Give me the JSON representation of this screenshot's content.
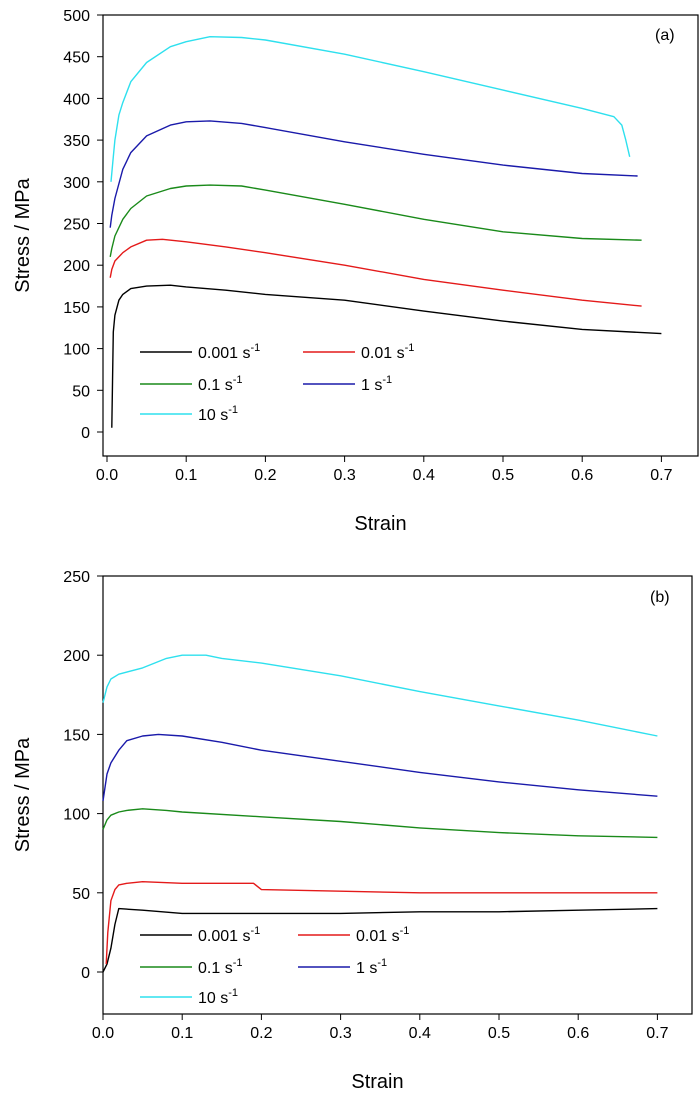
{
  "chart_data": [
    {
      "type": "line",
      "panel_label": "(a)",
      "xlabel": "Strain",
      "ylabel": "Stress / MPa",
      "xlim": [
        0,
        0.75
      ],
      "ylim": [
        -25,
        500
      ],
      "xticks": [
        "0.0",
        "0.1",
        "0.2",
        "0.3",
        "0.4",
        "0.5",
        "0.6",
        "0.7"
      ],
      "yticks": [
        "0",
        "50",
        "100",
        "150",
        "200",
        "250",
        "300",
        "350",
        "400",
        "450",
        "500"
      ],
      "legend_position": "lower-left",
      "series": [
        {
          "name": "0.001 s",
          "sup": "-1",
          "color": "#000000",
          "x": [
            0.006,
            0.008,
            0.01,
            0.015,
            0.02,
            0.03,
            0.05,
            0.08,
            0.1,
            0.15,
            0.2,
            0.3,
            0.4,
            0.5,
            0.6,
            0.7
          ],
          "y": [
            5,
            120,
            140,
            158,
            165,
            172,
            175,
            176,
            174,
            170,
            165,
            158,
            145,
            133,
            123,
            118
          ]
        },
        {
          "name": "0.01 s",
          "sup": "-1",
          "color": "#e41a1a",
          "x": [
            0.004,
            0.006,
            0.01,
            0.02,
            0.03,
            0.05,
            0.07,
            0.1,
            0.15,
            0.2,
            0.3,
            0.4,
            0.5,
            0.6,
            0.675
          ],
          "y": [
            185,
            195,
            205,
            215,
            222,
            230,
            231,
            228,
            222,
            215,
            200,
            183,
            170,
            158,
            151
          ]
        },
        {
          "name": "0.1 s",
          "sup": "-1",
          "color": "#1a8a1a",
          "x": [
            0.004,
            0.006,
            0.01,
            0.02,
            0.03,
            0.05,
            0.08,
            0.1,
            0.13,
            0.17,
            0.2,
            0.3,
            0.4,
            0.5,
            0.6,
            0.675
          ],
          "y": [
            210,
            220,
            235,
            255,
            268,
            283,
            292,
            295,
            296,
            295,
            290,
            273,
            255,
            240,
            232,
            230
          ]
        },
        {
          "name": "1 s",
          "sup": "-1",
          "color": "#1a1aaa",
          "x": [
            0.004,
            0.006,
            0.01,
            0.02,
            0.03,
            0.05,
            0.08,
            0.1,
            0.13,
            0.17,
            0.2,
            0.3,
            0.4,
            0.5,
            0.6,
            0.67
          ],
          "y": [
            245,
            260,
            280,
            315,
            335,
            355,
            368,
            372,
            373,
            370,
            365,
            348,
            333,
            320,
            310,
            307
          ]
        },
        {
          "name": "10 s",
          "sup": "-1",
          "color": "#2ee0ee",
          "x": [
            0.005,
            0.008,
            0.01,
            0.015,
            0.02,
            0.03,
            0.05,
            0.08,
            0.1,
            0.13,
            0.17,
            0.2,
            0.3,
            0.4,
            0.5,
            0.6,
            0.64,
            0.65,
            0.655,
            0.66
          ],
          "y": [
            300,
            330,
            350,
            380,
            395,
            420,
            443,
            462,
            468,
            474,
            473,
            470,
            453,
            432,
            410,
            388,
            378,
            368,
            350,
            330
          ]
        }
      ]
    },
    {
      "type": "line",
      "panel_label": "(b)",
      "xlabel": "Strain",
      "ylabel": "Stress / MPa",
      "xlim": [
        0,
        0.75
      ],
      "ylim": [
        -25,
        250
      ],
      "xticks": [
        "0.0",
        "0.1",
        "0.2",
        "0.3",
        "0.4",
        "0.5",
        "0.6",
        "0.7"
      ],
      "yticks": [
        "0",
        "50",
        "100",
        "150",
        "200",
        "250"
      ],
      "legend_position": "lower-left",
      "series": [
        {
          "name": "0.001 s",
          "sup": "-1",
          "color": "#000000",
          "x": [
            0.0,
            0.005,
            0.01,
            0.015,
            0.02,
            0.05,
            0.1,
            0.2,
            0.3,
            0.4,
            0.5,
            0.6,
            0.7
          ],
          "y": [
            0,
            5,
            15,
            30,
            40,
            39,
            37,
            37,
            37,
            38,
            38,
            39,
            40
          ]
        },
        {
          "name": "0.01 s",
          "sup": "-1",
          "color": "#e41a1a",
          "x": [
            0.004,
            0.006,
            0.01,
            0.015,
            0.02,
            0.03,
            0.05,
            0.1,
            0.15,
            0.19,
            0.2,
            0.3,
            0.4,
            0.5,
            0.6,
            0.7
          ],
          "y": [
            5,
            25,
            45,
            52,
            55,
            56,
            57,
            56,
            56,
            56,
            52,
            51,
            50,
            50,
            50,
            50
          ]
        },
        {
          "name": "0.1 s",
          "sup": "-1",
          "color": "#1a8a1a",
          "x": [
            0.0,
            0.005,
            0.01,
            0.02,
            0.03,
            0.05,
            0.08,
            0.1,
            0.2,
            0.3,
            0.4,
            0.5,
            0.6,
            0.7
          ],
          "y": [
            90,
            96,
            99,
            101,
            102,
            103,
            102,
            101,
            98,
            95,
            91,
            88,
            86,
            85
          ]
        },
        {
          "name": "1 s",
          "sup": "-1",
          "color": "#1a1aaa",
          "x": [
            0.0,
            0.005,
            0.01,
            0.02,
            0.03,
            0.05,
            0.07,
            0.1,
            0.15,
            0.2,
            0.3,
            0.4,
            0.5,
            0.6,
            0.7
          ],
          "y": [
            108,
            125,
            132,
            140,
            146,
            149,
            150,
            149,
            145,
            140,
            133,
            126,
            120,
            115,
            111
          ]
        },
        {
          "name": "10 s",
          "sup": "-1",
          "color": "#2ee0ee",
          "x": [
            0.0,
            0.005,
            0.01,
            0.02,
            0.05,
            0.08,
            0.1,
            0.13,
            0.15,
            0.2,
            0.3,
            0.4,
            0.5,
            0.6,
            0.7
          ],
          "y": [
            170,
            180,
            185,
            188,
            192,
            198,
            200,
            200,
            198,
            195,
            187,
            177,
            168,
            159,
            149
          ]
        }
      ]
    }
  ]
}
